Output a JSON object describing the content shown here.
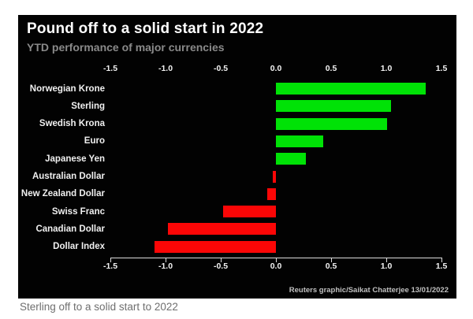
{
  "panel": {
    "title": "Pound off to a solid start in 2022",
    "subtitle": "YTD performance of major currencies",
    "credit": "Reuters graphic/Saikat Chatterjee 13/01/2022"
  },
  "caption": "Sterling off to a solid start to 2022",
  "colors": {
    "page_background": "#ffffff",
    "panel_background": "#020202",
    "title_text": "#ffffff",
    "subtitle_text": "#8a8a8a",
    "row_label_text": "#f0f0f0",
    "axis": "#dcdcdc",
    "positive_bar": "#00e206",
    "negative_bar": "#fb0606",
    "credit_text": "#c0c0c0",
    "caption_text": "#6f6f6f"
  },
  "chart_data": {
    "type": "bar",
    "orientation": "horizontal",
    "title": "Pound off to a solid start in 2022",
    "subtitle": "YTD performance of major currencies",
    "categories": [
      "Norwegian Krone",
      "Sterling",
      "Swedish Krona",
      "Euro",
      "Japanese Yen",
      "Australian Dollar",
      "New Zealand Dollar",
      "Swiss Franc",
      "Canadian Dollar",
      "Dollar Index"
    ],
    "values": [
      1.36,
      1.04,
      1.01,
      0.43,
      0.27,
      -0.03,
      -0.08,
      -0.48,
      -0.98,
      -1.1
    ],
    "unit": "percent YTD change",
    "xlim": [
      -1.5,
      1.5
    ],
    "xticks": [
      -1.5,
      -1.0,
      -0.5,
      0.0,
      0.5,
      1.0,
      1.5
    ],
    "tick_labels": [
      "-1.5",
      "-1.0",
      "-0.5",
      "0.0",
      "0.5",
      "1.0",
      "1.5"
    ],
    "tick_label_rows": "top and bottom",
    "grid": false,
    "legend": "none",
    "positive_color": "#00e206",
    "negative_color": "#fb0606",
    "source_credit": "Reuters graphic/Saikat Chatterjee 13/01/2022"
  }
}
